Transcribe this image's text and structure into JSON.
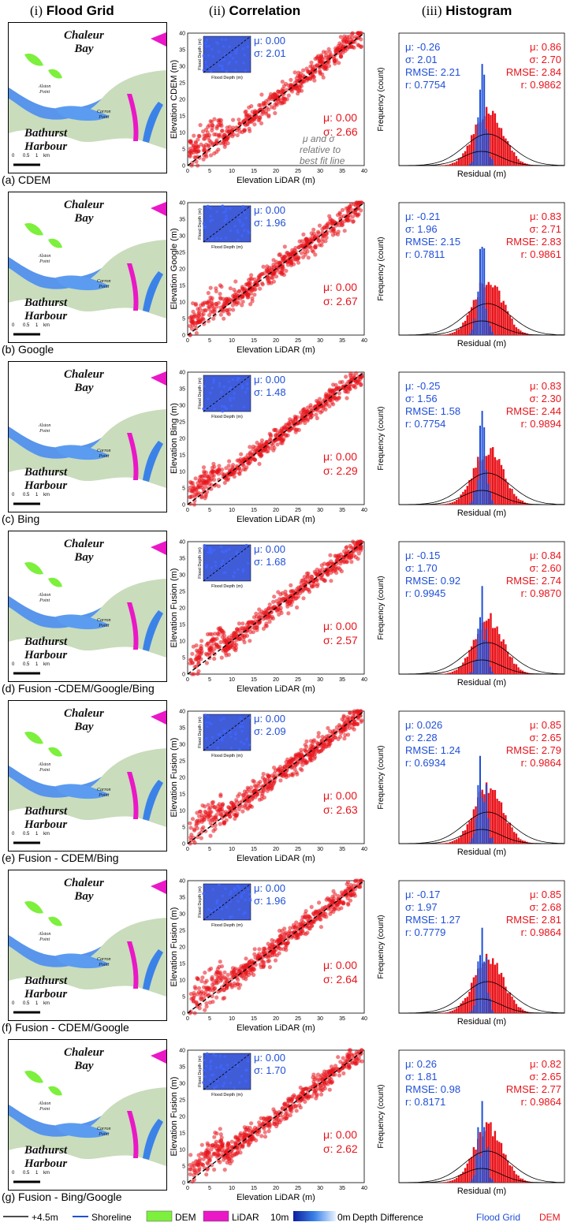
{
  "columns": {
    "c1": {
      "num": "(i)",
      "title": "Flood Grid"
    },
    "c2": {
      "num": "(ii)",
      "title": "Correlation"
    },
    "c3": {
      "num": "(iii)",
      "title": "Histogram"
    }
  },
  "map_labels": {
    "bay": "Chaleur\nBay",
    "harbour": "Bathurst\nHarbour",
    "alston": "Alston\nPoint",
    "carron": "Carron\nPoint",
    "scale": [
      "0",
      "0.5",
      "1",
      "km"
    ]
  },
  "axes": {
    "scatter_xlabel": "Elevation LiDAR (m)",
    "inset_xlabel": "Flood Depth (m)",
    "inset_ylabel": "Flood Depth (m)",
    "hist_xlabel": "Residual (m)",
    "hist_ylabel": "Frequency (count)"
  },
  "annotation_note": "μ and σ\nrelative to\nbest fit line",
  "legend": {
    "plus45": "+4.5m",
    "shoreline": "Shoreline",
    "dem": "DEM",
    "lidar": "LiDAR",
    "depth_hi": "10m",
    "depth_lo": "0m",
    "depth_label": "Depth Difference",
    "flood_grid": "Flood Grid",
    "dem_series": "DEM"
  },
  "colors": {
    "flood_blue": "#1f4fd8",
    "dem_red": "#e8141b",
    "dem_green": "#7cf03c",
    "lidar_magenta": "#ea18c6",
    "water": "#3b82e8"
  },
  "chart_data": [
    {
      "panel": "a",
      "label": "(a) CDEM",
      "type": "scatter",
      "ylabel": "Elevation CDEM (m)",
      "xlim": [
        0,
        40
      ],
      "ylim": [
        0,
        40
      ],
      "inset": {
        "mu": "μ: 0.00",
        "sigma": "σ: 2.01"
      },
      "main": {
        "mu": "μ: 0.00",
        "sigma": "σ: 2.66"
      },
      "hist": {
        "type": "bar",
        "flood": {
          "mu": "μ: -0.26",
          "sigma": "σ: 2.01",
          "rmse": "RMSE: 2.21",
          "r": "r: 0.7754"
        },
        "dem": {
          "mu": "μ: 0.86",
          "sigma": "σ: 2.70",
          "rmse": "RMSE: 2.84",
          "r": "r: 0.9862"
        }
      }
    },
    {
      "panel": "b",
      "label": "(b) Google",
      "type": "scatter",
      "ylabel": "Elevation Google (m)",
      "xlim": [
        0,
        40
      ],
      "ylim": [
        0,
        40
      ],
      "inset": {
        "mu": "μ: 0.00",
        "sigma": "σ: 1.96"
      },
      "main": {
        "mu": "μ: 0.00",
        "sigma": "σ: 2.67"
      },
      "hist": {
        "type": "bar",
        "flood": {
          "mu": "μ: -0.21",
          "sigma": "σ: 1.96",
          "rmse": "RMSE: 2.15",
          "r": "r: 0.7811"
        },
        "dem": {
          "mu": "μ: 0.83",
          "sigma": "σ: 2.71",
          "rmse": "RMSE: 2.83",
          "r": "r: 0.9861"
        }
      }
    },
    {
      "panel": "c",
      "label": "(c) Bing",
      "type": "scatter",
      "ylabel": "Elevation Bing (m)",
      "xlim": [
        0,
        40
      ],
      "ylim": [
        0,
        40
      ],
      "inset": {
        "mu": "μ: 0.00",
        "sigma": "σ: 1.48"
      },
      "main": {
        "mu": "μ: 0.00",
        "sigma": "σ: 2.29"
      },
      "hist": {
        "type": "bar",
        "flood": {
          "mu": "μ: -0.25",
          "sigma": "σ: 1.56",
          "rmse": "RMSE: 1.58",
          "r": "r: 0.7754"
        },
        "dem": {
          "mu": "μ: 0.83",
          "sigma": "σ: 2.30",
          "rmse": "RMSE: 2.44",
          "r": "r: 0.9894"
        }
      }
    },
    {
      "panel": "d",
      "label": "(d) Fusion -CDEM/Google/Bing",
      "type": "scatter",
      "ylabel": "Elevation Fusion (m)",
      "xlim": [
        0,
        40
      ],
      "ylim": [
        0,
        40
      ],
      "inset": {
        "mu": "μ: 0.00",
        "sigma": "σ: 1.68"
      },
      "main": {
        "mu": "μ: 0.00",
        "sigma": "σ: 2.57"
      },
      "hist": {
        "type": "bar",
        "flood": {
          "mu": "μ: -0.15",
          "sigma": "σ: 1.70",
          "rmse": "RMSE: 0.92",
          "r": "r: 0.9945"
        },
        "dem": {
          "mu": "μ: 0.84",
          "sigma": "σ: 2.60",
          "rmse": "RMSE: 2.74",
          "r": "r: 0.9870"
        }
      }
    },
    {
      "panel": "e",
      "label": "(e) Fusion - CDEM/Bing",
      "type": "scatter",
      "ylabel": "Elevation Fusion (m)",
      "xlim": [
        0,
        40
      ],
      "ylim": [
        0,
        40
      ],
      "inset": {
        "mu": "μ: 0.00",
        "sigma": "σ: 2.09"
      },
      "main": {
        "mu": "μ: 0.00",
        "sigma": "σ: 2.63"
      },
      "hist": {
        "type": "bar",
        "flood": {
          "mu": "μ: 0.026",
          "sigma": "σ:  2.28",
          "rmse": "RMSE: 1.24",
          "r": "r: 0.6934"
        },
        "dem": {
          "mu": "μ: 0.85",
          "sigma": "σ: 2.65",
          "rmse": "RMSE: 2.79",
          "r": "r: 0.9864"
        }
      }
    },
    {
      "panel": "f",
      "label": "(f) Fusion - CDEM/Google",
      "type": "scatter",
      "ylabel": "Elevation Fusion (m)",
      "xlim": [
        0,
        40
      ],
      "ylim": [
        0,
        40
      ],
      "inset": {
        "mu": "μ: 0.00",
        "sigma": "σ: 1.96"
      },
      "main": {
        "mu": "μ: 0.00",
        "sigma": "σ: 2.64"
      },
      "hist": {
        "type": "bar",
        "flood": {
          "mu": "μ: -0.17",
          "sigma": "σ: 1.97",
          "rmse": "RMSE: 1.27",
          "r": "r: 0.7779"
        },
        "dem": {
          "mu": "μ: 0.85",
          "sigma": "σ: 2.68",
          "rmse": "RMSE: 2.81",
          "r": "r: 0.9864"
        }
      }
    },
    {
      "panel": "g",
      "label": "(g) Fusion - Bing/Google",
      "type": "scatter",
      "ylabel": "Elevation Fusion (m)",
      "xlim": [
        0,
        40
      ],
      "ylim": [
        0,
        40
      ],
      "inset": {
        "mu": "μ: 0.00",
        "sigma": "σ: 1.70"
      },
      "main": {
        "mu": "μ: 0.00",
        "sigma": "σ: 2.62"
      },
      "hist": {
        "type": "bar",
        "flood": {
          "mu": "μ: 0.26",
          "sigma": "σ: 1.81",
          "rmse": "RMSE: 0.98",
          "r": "r: 0.8171"
        },
        "dem": {
          "mu": "μ: 0.82",
          "sigma": "σ: 2.65",
          "rmse": "RMSE: 2.77",
          "r": "r: 0.9864"
        }
      }
    }
  ]
}
